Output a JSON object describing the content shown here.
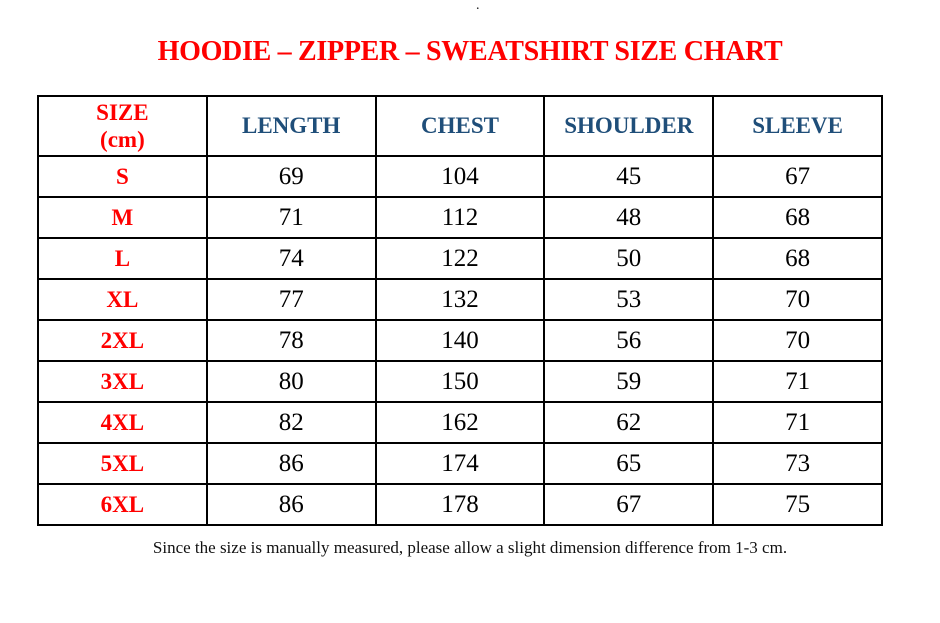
{
  "stray_dot": ".",
  "title": "HOODIE – ZIPPER – SWEATSHIRT SIZE CHART",
  "table": {
    "header": {
      "size_line1": "SIZE",
      "size_line2": "(cm)",
      "col_length": "LENGTH",
      "col_chest": "CHEST",
      "col_shoulder": "SHOULDER",
      "col_sleeve": "SLEEVE"
    },
    "rows": [
      {
        "size": "S",
        "length": "69",
        "chest": "104",
        "shoulder": "45",
        "sleeve": "67"
      },
      {
        "size": "M",
        "length": "71",
        "chest": "112",
        "shoulder": "48",
        "sleeve": "68"
      },
      {
        "size": "L",
        "length": "74",
        "chest": "122",
        "shoulder": "50",
        "sleeve": "68"
      },
      {
        "size": "XL",
        "length": "77",
        "chest": "132",
        "shoulder": "53",
        "sleeve": "70"
      },
      {
        "size": "2XL",
        "length": "78",
        "chest": "140",
        "shoulder": "56",
        "sleeve": "70"
      },
      {
        "size": "3XL",
        "length": "80",
        "chest": "150",
        "shoulder": "59",
        "sleeve": "71"
      },
      {
        "size": "4XL",
        "length": "82",
        "chest": "162",
        "shoulder": "62",
        "sleeve": "71"
      },
      {
        "size": "5XL",
        "length": "86",
        "chest": "174",
        "shoulder": "65",
        "sleeve": "73"
      },
      {
        "size": "6XL",
        "length": "86",
        "chest": "178",
        "shoulder": "67",
        "sleeve": "75"
      }
    ]
  },
  "footer_note": "Since the size is manually measured, please allow a slight dimension difference from 1-3 cm.",
  "colors": {
    "accent_red": "#FF0000",
    "header_blue": "#1F4E79",
    "border_black": "#000000",
    "background": "#FFFFFF"
  }
}
